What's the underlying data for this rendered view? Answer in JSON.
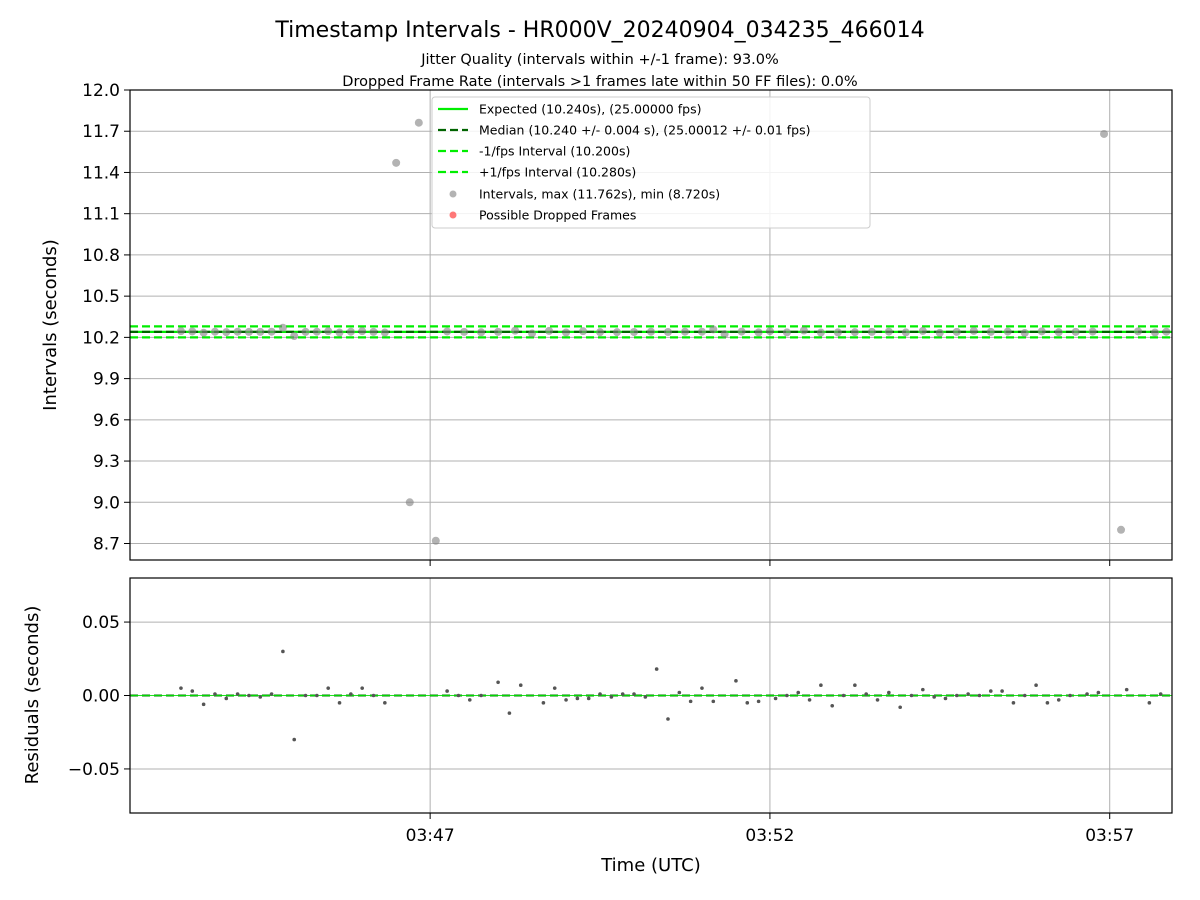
{
  "chart_data": [
    {
      "type": "scatter",
      "panel": "intervals",
      "title": "Timestamp Intervals - HR000V_20240904_034235_466014",
      "subtitle_lines": [
        "Jitter Quality (intervals within +/-1 frame): 93.0%",
        "Dropped Frame Rate (intervals >1 frames late within 50 FF files): 0.0%"
      ],
      "ylabel": "Intervals (seconds)",
      "ylim": [
        8.58,
        12.0
      ],
      "yticks": [
        8.7,
        9.0,
        9.3,
        9.6,
        9.9,
        10.2,
        10.5,
        10.8,
        11.1,
        11.4,
        11.7,
        12.0
      ],
      "ytick_labels": [
        "8.7",
        "9.0",
        "9.3",
        "9.6",
        "9.9",
        "10.2",
        "10.5",
        "10.8",
        "11.1",
        "11.4",
        "11.7",
        "12.0"
      ],
      "xlim": [
        "03:42:35",
        "03:57:55"
      ],
      "xticks": [
        "03:47",
        "03:52",
        "03:57"
      ],
      "grid": true,
      "legend_position": "upper center",
      "reference_lines": [
        {
          "name": "Expected (10.240s), (25.00000 fps)",
          "y": 10.24,
          "color": "#00ee00",
          "style": "solid"
        },
        {
          "name": "Median (10.240 +/- 0.004 s), (25.00012 +/- 0.01 fps)",
          "y": 10.24,
          "color": "#006400",
          "style": "dashed"
        },
        {
          "name": "-1/fps Interval (10.200s)",
          "y": 10.2,
          "color": "#00ee00",
          "style": "dashed"
        },
        {
          "name": "+1/fps Interval (10.280s)",
          "y": 10.28,
          "color": "#00ee00",
          "style": "dashed"
        }
      ],
      "series": [
        {
          "name": "Intervals, max (11.762s), min (8.720s)",
          "color": "#808080",
          "points": [
            {
              "t": "03:43:20",
              "y": 10.245
            },
            {
              "t": "03:43:30",
              "y": 10.243
            },
            {
              "t": "03:43:40",
              "y": 10.234
            },
            {
              "t": "03:43:50",
              "y": 10.241
            },
            {
              "t": "03:44:00",
              "y": 10.238
            },
            {
              "t": "03:44:10",
              "y": 10.241
            },
            {
              "t": "03:44:20",
              "y": 10.24
            },
            {
              "t": "03:44:30",
              "y": 10.24
            },
            {
              "t": "03:44:40",
              "y": 10.241
            },
            {
              "t": "03:44:50",
              "y": 10.27
            },
            {
              "t": "03:45:00",
              "y": 10.21
            },
            {
              "t": "03:45:10",
              "y": 10.24
            },
            {
              "t": "03:45:20",
              "y": 10.241
            },
            {
              "t": "03:45:30",
              "y": 10.245
            },
            {
              "t": "03:45:40",
              "y": 10.235
            },
            {
              "t": "03:45:50",
              "y": 10.241
            },
            {
              "t": "03:46:00",
              "y": 10.245
            },
            {
              "t": "03:46:10",
              "y": 10.24
            },
            {
              "t": "03:46:20",
              "y": 10.235
            },
            {
              "t": "03:46:30",
              "y": 11.47
            },
            {
              "t": "03:46:42",
              "y": 9.0
            },
            {
              "t": "03:46:50",
              "y": 11.762
            },
            {
              "t": "03:47:05",
              "y": 8.72
            },
            {
              "t": "03:47:15",
              "y": 10.243
            },
            {
              "t": "03:47:30",
              "y": 10.24
            },
            {
              "t": "03:47:45",
              "y": 10.237
            },
            {
              "t": "03:48:00",
              "y": 10.24
            },
            {
              "t": "03:48:15",
              "y": 10.249
            },
            {
              "t": "03:48:30",
              "y": 10.228
            },
            {
              "t": "03:48:45",
              "y": 10.247
            },
            {
              "t": "03:49:00",
              "y": 10.235
            },
            {
              "t": "03:49:15",
              "y": 10.245
            },
            {
              "t": "03:49:30",
              "y": 10.238
            },
            {
              "t": "03:49:45",
              "y": 10.238
            },
            {
              "t": "03:50:00",
              "y": 10.239
            },
            {
              "t": "03:50:15",
              "y": 10.241
            },
            {
              "t": "03:50:30",
              "y": 10.239
            },
            {
              "t": "03:50:45",
              "y": 10.241
            },
            {
              "t": "03:51:00",
              "y": 10.241
            },
            {
              "t": "03:51:10",
              "y": 10.258
            },
            {
              "t": "03:51:20",
              "y": 10.224
            },
            {
              "t": "03:51:35",
              "y": 10.242
            },
            {
              "t": "03:51:50",
              "y": 10.236
            },
            {
              "t": "03:52:00",
              "y": 10.245
            },
            {
              "t": "03:52:15",
              "y": 10.236
            },
            {
              "t": "03:52:30",
              "y": 10.25
            },
            {
              "t": "03:52:45",
              "y": 10.235
            },
            {
              "t": "03:53:00",
              "y": 10.236
            },
            {
              "t": "03:53:15",
              "y": 10.238
            },
            {
              "t": "03:53:30",
              "y": 10.24
            },
            {
              "t": "03:53:45",
              "y": 10.242
            },
            {
              "t": "03:54:00",
              "y": 10.236
            },
            {
              "t": "03:54:15",
              "y": 10.247
            },
            {
              "t": "03:54:30",
              "y": 10.233
            },
            {
              "t": "03:54:45",
              "y": 10.24
            },
            {
              "t": "03:55:00",
              "y": 10.247
            },
            {
              "t": "03:55:15",
              "y": 10.24
            },
            {
              "t": "03:55:30",
              "y": 10.242
            },
            {
              "t": "03:55:45",
              "y": 10.232
            },
            {
              "t": "03:56:00",
              "y": 10.244
            },
            {
              "t": "03:56:15",
              "y": 10.238
            },
            {
              "t": "03:56:30",
              "y": 10.24
            },
            {
              "t": "03:56:45",
              "y": 10.242
            },
            {
              "t": "03:56:55",
              "y": 11.68
            },
            {
              "t": "03:57:10",
              "y": 8.8
            },
            {
              "t": "03:57:25",
              "y": 10.244
            },
            {
              "t": "03:57:40",
              "y": 10.235
            },
            {
              "t": "03:57:50",
              "y": 10.241
            }
          ]
        },
        {
          "name": "Possible Dropped Frames",
          "color": "#ff4040",
          "points": []
        }
      ]
    },
    {
      "type": "scatter",
      "panel": "residuals",
      "xlabel": "Time (UTC)",
      "ylabel": "Residuals (seconds)",
      "ylim": [
        -0.08,
        0.08
      ],
      "yticks": [
        -0.05,
        0.0,
        0.05
      ],
      "ytick_labels": [
        "−0.05",
        "0.00",
        "0.05"
      ],
      "xticks": [
        "03:47",
        "03:52",
        "03:57"
      ],
      "grid": true,
      "zero_line_color": "#008000",
      "series": [
        {
          "name": "Residuals",
          "color": "#555555",
          "points": [
            {
              "t": "03:43:20",
              "y": 0.005
            },
            {
              "t": "03:43:30",
              "y": 0.003
            },
            {
              "t": "03:43:40",
              "y": -0.006
            },
            {
              "t": "03:43:50",
              "y": 0.001
            },
            {
              "t": "03:44:00",
              "y": -0.002
            },
            {
              "t": "03:44:10",
              "y": 0.001
            },
            {
              "t": "03:44:20",
              "y": 0.0
            },
            {
              "t": "03:44:30",
              "y": -0.001
            },
            {
              "t": "03:44:40",
              "y": 0.001
            },
            {
              "t": "03:44:50",
              "y": 0.03
            },
            {
              "t": "03:45:00",
              "y": -0.03
            },
            {
              "t": "03:45:10",
              "y": 0.0
            },
            {
              "t": "03:45:20",
              "y": 0.0
            },
            {
              "t": "03:45:30",
              "y": 0.005
            },
            {
              "t": "03:45:40",
              "y": -0.005
            },
            {
              "t": "03:45:50",
              "y": 0.001
            },
            {
              "t": "03:46:00",
              "y": 0.005
            },
            {
              "t": "03:46:10",
              "y": 0.0
            },
            {
              "t": "03:46:20",
              "y": -0.005
            },
            {
              "t": "03:47:15",
              "y": 0.003
            },
            {
              "t": "03:47:25",
              "y": 0.0
            },
            {
              "t": "03:47:35",
              "y": -0.003
            },
            {
              "t": "03:47:45",
              "y": 0.0
            },
            {
              "t": "03:48:00",
              "y": 0.009
            },
            {
              "t": "03:48:10",
              "y": -0.012
            },
            {
              "t": "03:48:20",
              "y": 0.007
            },
            {
              "t": "03:48:40",
              "y": -0.005
            },
            {
              "t": "03:48:50",
              "y": 0.005
            },
            {
              "t": "03:49:00",
              "y": -0.003
            },
            {
              "t": "03:49:10",
              "y": -0.002
            },
            {
              "t": "03:49:20",
              "y": -0.002
            },
            {
              "t": "03:49:30",
              "y": 0.001
            },
            {
              "t": "03:49:40",
              "y": -0.001
            },
            {
              "t": "03:49:50",
              "y": 0.001
            },
            {
              "t": "03:50:00",
              "y": 0.001
            },
            {
              "t": "03:50:10",
              "y": -0.001
            },
            {
              "t": "03:50:20",
              "y": 0.018
            },
            {
              "t": "03:50:30",
              "y": -0.016
            },
            {
              "t": "03:50:40",
              "y": 0.002
            },
            {
              "t": "03:50:50",
              "y": -0.004
            },
            {
              "t": "03:51:00",
              "y": 0.005
            },
            {
              "t": "03:51:10",
              "y": -0.004
            },
            {
              "t": "03:51:30",
              "y": 0.01
            },
            {
              "t": "03:51:40",
              "y": -0.005
            },
            {
              "t": "03:51:50",
              "y": -0.004
            },
            {
              "t": "03:52:05",
              "y": -0.002
            },
            {
              "t": "03:52:15",
              "y": 0.0
            },
            {
              "t": "03:52:25",
              "y": 0.002
            },
            {
              "t": "03:52:35",
              "y": -0.003
            },
            {
              "t": "03:52:45",
              "y": 0.007
            },
            {
              "t": "03:52:55",
              "y": -0.007
            },
            {
              "t": "03:53:05",
              "y": 0.0
            },
            {
              "t": "03:53:15",
              "y": 0.007
            },
            {
              "t": "03:53:25",
              "y": 0.001
            },
            {
              "t": "03:53:35",
              "y": -0.003
            },
            {
              "t": "03:53:45",
              "y": 0.002
            },
            {
              "t": "03:53:55",
              "y": -0.008
            },
            {
              "t": "03:54:05",
              "y": 0.0
            },
            {
              "t": "03:54:15",
              "y": 0.004
            },
            {
              "t": "03:54:25",
              "y": -0.001
            },
            {
              "t": "03:54:35",
              "y": -0.002
            },
            {
              "t": "03:54:45",
              "y": 0.0
            },
            {
              "t": "03:54:55",
              "y": 0.001
            },
            {
              "t": "03:55:05",
              "y": 0.0
            },
            {
              "t": "03:55:15",
              "y": 0.003
            },
            {
              "t": "03:55:25",
              "y": 0.003
            },
            {
              "t": "03:55:35",
              "y": -0.005
            },
            {
              "t": "03:55:45",
              "y": 0.0
            },
            {
              "t": "03:55:55",
              "y": 0.007
            },
            {
              "t": "03:56:05",
              "y": -0.005
            },
            {
              "t": "03:56:15",
              "y": -0.003
            },
            {
              "t": "03:56:25",
              "y": 0.0
            },
            {
              "t": "03:56:40",
              "y": 0.001
            },
            {
              "t": "03:56:50",
              "y": 0.002
            },
            {
              "t": "03:57:15",
              "y": 0.004
            },
            {
              "t": "03:57:35",
              "y": -0.005
            },
            {
              "t": "03:57:45",
              "y": 0.001
            }
          ]
        }
      ]
    }
  ],
  "colors": {
    "expected": "#00ee00",
    "median": "#006400",
    "interval_points": "#808080",
    "dropped_frames": "#ff4040",
    "grid": "#b0b0b0"
  }
}
